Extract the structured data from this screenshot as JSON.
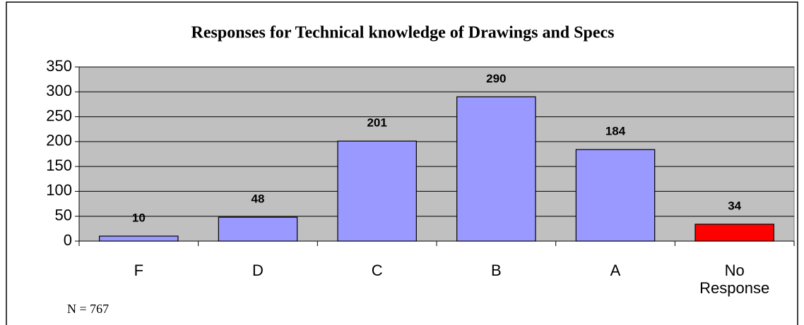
{
  "chart_data": {
    "type": "bar",
    "title": "Responses for Technical knowledge of Drawings and Specs",
    "categories": [
      "F",
      "D",
      "C",
      "B",
      "A",
      "No Response"
    ],
    "values": [
      10,
      48,
      201,
      290,
      184,
      34
    ],
    "colors": [
      "#9999ff",
      "#9999ff",
      "#9999ff",
      "#9999ff",
      "#9999ff",
      "#ff0000"
    ],
    "ylim": [
      0,
      350
    ],
    "yticks": [
      0,
      50,
      100,
      150,
      200,
      250,
      300,
      350
    ],
    "grid": true,
    "annotation": "N = 767"
  }
}
